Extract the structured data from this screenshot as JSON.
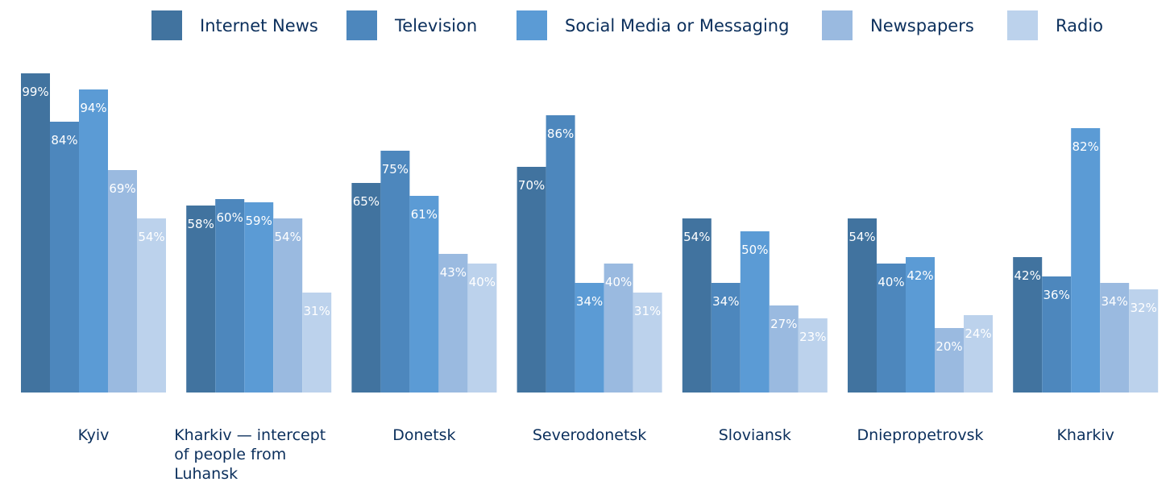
{
  "chart_data": {
    "type": "bar",
    "categories": [
      "Kyiv",
      "Kharkiv — intercept of people from Luhansk",
      "Donetsk",
      "Severodonetsk",
      "Sloviansk",
      "Dniepropetrovsk",
      "Kharkiv"
    ],
    "series": [
      {
        "name": "Internet News",
        "color": "#41739f",
        "values": [
          99,
          58,
          65,
          70,
          54,
          54,
          42
        ],
        "value_labels": [
          "99%",
          "58%",
          "65%",
          "70%",
          "54%",
          "54%",
          "42%"
        ]
      },
      {
        "name": "Television",
        "color": "#4d87bd",
        "values": [
          84,
          60,
          75,
          86,
          34,
          40,
          36
        ],
        "value_labels": [
          "84%",
          "60%",
          "75%",
          "86%",
          "34%",
          "40%",
          "36%"
        ]
      },
      {
        "name": "Social Media or Messaging",
        "color": "#5b9bd5",
        "values": [
          94,
          59,
          61,
          34,
          50,
          42,
          82
        ],
        "value_labels": [
          "94%",
          "59%",
          "61%",
          "34%",
          "50%",
          "42%",
          "82%"
        ]
      },
      {
        "name": "Newspapers",
        "color": "#9abae0",
        "values": [
          69,
          54,
          43,
          40,
          27,
          20,
          34
        ],
        "value_labels": [
          "69%",
          "54%",
          "43%",
          "40%",
          "27%",
          "20%",
          "34%"
        ]
      },
      {
        "name": "Radio",
        "color": "#bcd2ec",
        "values": [
          54,
          31,
          40,
          31,
          23,
          24,
          32
        ],
        "value_labels": [
          "54%",
          "31%",
          "40%",
          "31%",
          "23%",
          "24%",
          "32%"
        ]
      }
    ],
    "ylim": [
      0,
      100
    ],
    "legend": "top"
  }
}
